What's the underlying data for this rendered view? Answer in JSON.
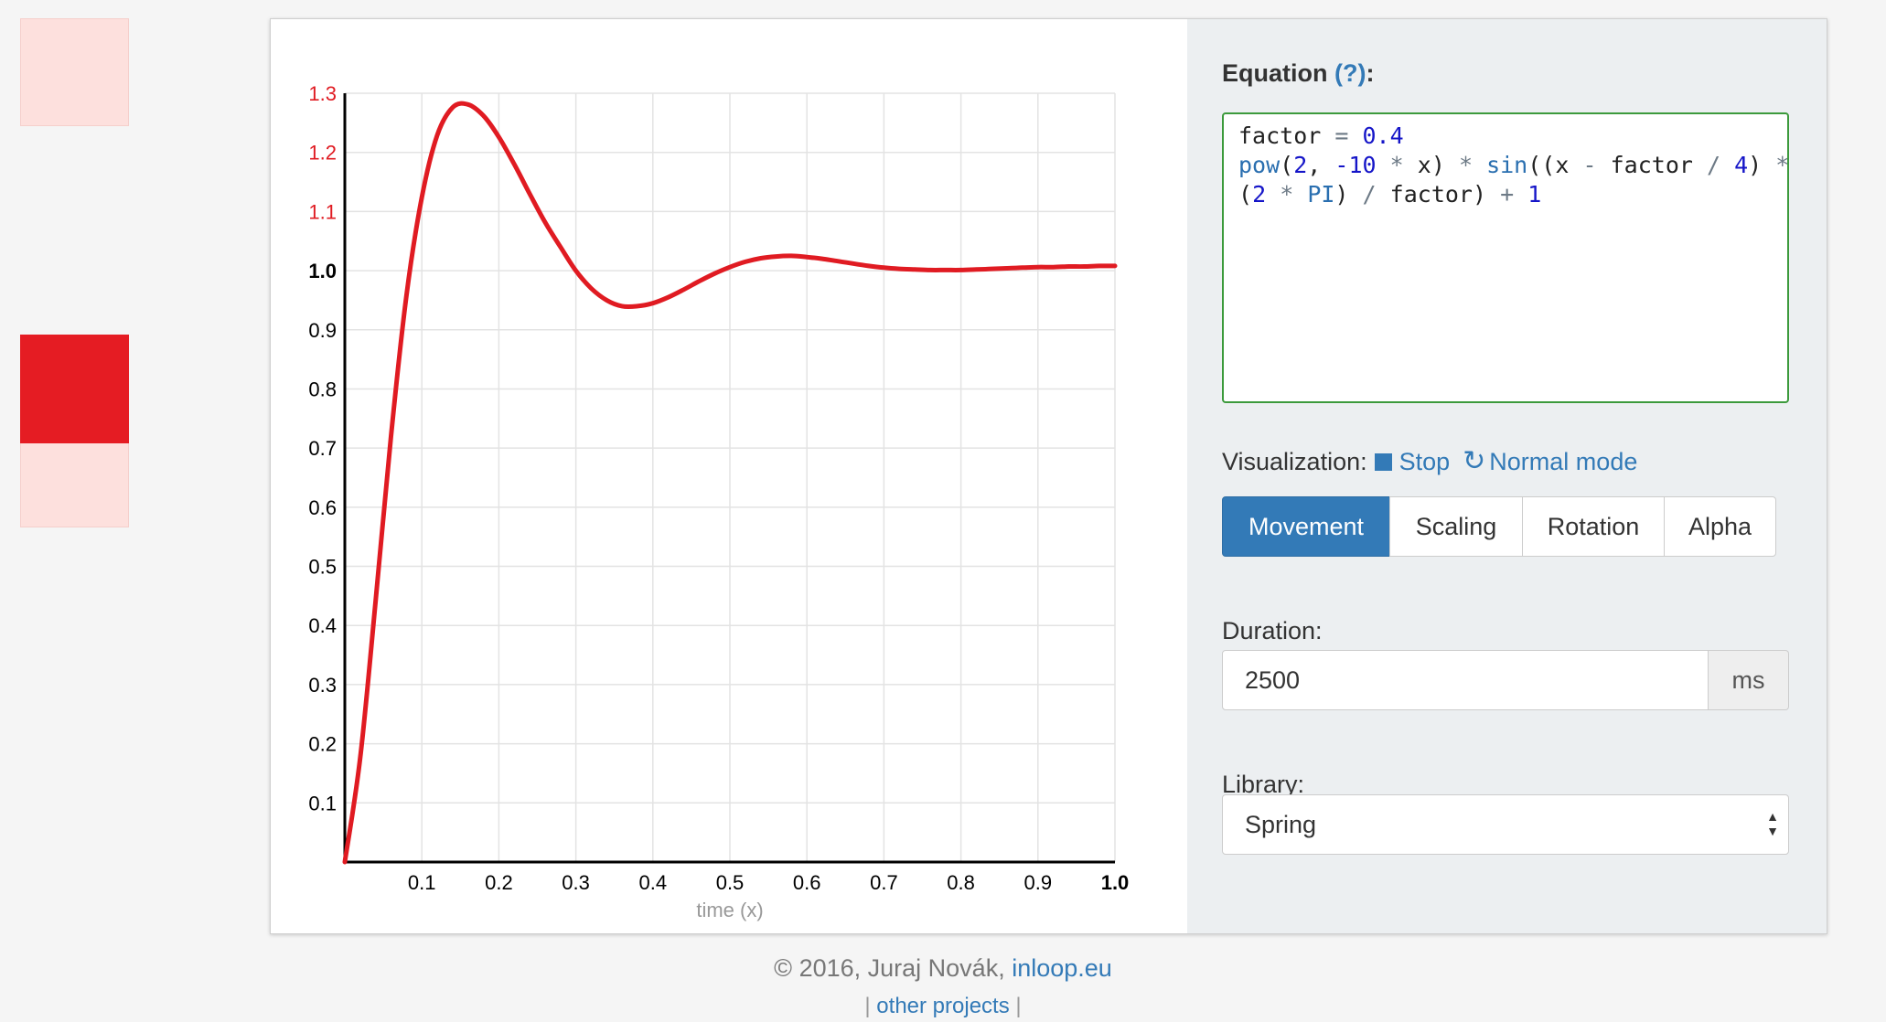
{
  "preview": {
    "animated_color": "#e51c23",
    "ghost_color": "#fde0dd"
  },
  "equation": {
    "heading": "Equation",
    "help_link": "(?)",
    "heading_colon": ":",
    "code_lines": [
      "factor = 0.4",
      "pow(2, -10 * x) * sin((x - factor / 4) *",
      "(2 * PI) / factor) + 1"
    ]
  },
  "visualization": {
    "label": "Visualization:",
    "stop_label": "Stop",
    "mode_label": "Normal mode",
    "modes": [
      "Movement",
      "Scaling",
      "Rotation",
      "Alpha"
    ],
    "active_mode": "Movement"
  },
  "duration": {
    "label": "Duration:",
    "value": "2500",
    "unit": "ms"
  },
  "library": {
    "label": "Library:",
    "selected": "Spring"
  },
  "footer": {
    "copyright": "© 2016, Juraj Novák,",
    "site_link": "inloop.eu",
    "sep_left": "|",
    "projects_link": "other projects",
    "sep_right": "|"
  },
  "chart_data": {
    "type": "line",
    "title": "",
    "xlabel": "time (x)",
    "ylabel": "",
    "xlim": [
      0,
      1.0
    ],
    "ylim": [
      0,
      1.3
    ],
    "x_ticks": [
      "0.1",
      "0.2",
      "0.3",
      "0.4",
      "0.5",
      "0.6",
      "0.7",
      "0.8",
      "0.9",
      "1.0"
    ],
    "y_ticks": [
      "0.1",
      "0.2",
      "0.3",
      "0.4",
      "0.5",
      "0.6",
      "0.7",
      "0.8",
      "0.9",
      "1.0",
      "1.1",
      "1.2",
      "1.3"
    ],
    "grid": true,
    "line_color": "#e01b22",
    "overshoot_tick_color": "#e01b22",
    "series": [
      {
        "x": [
          0,
          0.02,
          0.04,
          0.06,
          0.08,
          0.1,
          0.12,
          0.14,
          0.16,
          0.18,
          0.2,
          0.22,
          0.24,
          0.26,
          0.28,
          0.3,
          0.32,
          0.34,
          0.36,
          0.38,
          0.4,
          0.42,
          0.44,
          0.46,
          0.48,
          0.5,
          0.52,
          0.54,
          0.56,
          0.58,
          0.6,
          0.62,
          0.64,
          0.66,
          0.68,
          0.7,
          0.72,
          0.74,
          0.76,
          0.78,
          0.8,
          0.82,
          0.84,
          0.86,
          0.88,
          0.9,
          0.92,
          0.94,
          0.96,
          0.98,
          1.0
        ],
        "values": [
          0.0,
          0.176,
          0.442,
          0.72,
          0.958,
          1.124,
          1.229,
          1.276,
          1.281,
          1.262,
          1.226,
          1.18,
          1.13,
          1.082,
          1.04,
          1.0,
          0.97,
          0.95,
          0.94,
          0.94,
          0.945,
          0.955,
          0.968,
          0.982,
          0.995,
          1.006,
          1.015,
          1.021,
          1.024,
          1.025,
          1.023,
          1.02,
          1.016,
          1.012,
          1.008,
          1.005,
          1.003,
          1.002,
          1.001,
          1.001,
          1.001,
          1.002,
          1.003,
          1.004,
          1.005,
          1.006,
          1.006,
          1.007,
          1.007,
          1.008,
          1.008
        ]
      }
    ]
  }
}
